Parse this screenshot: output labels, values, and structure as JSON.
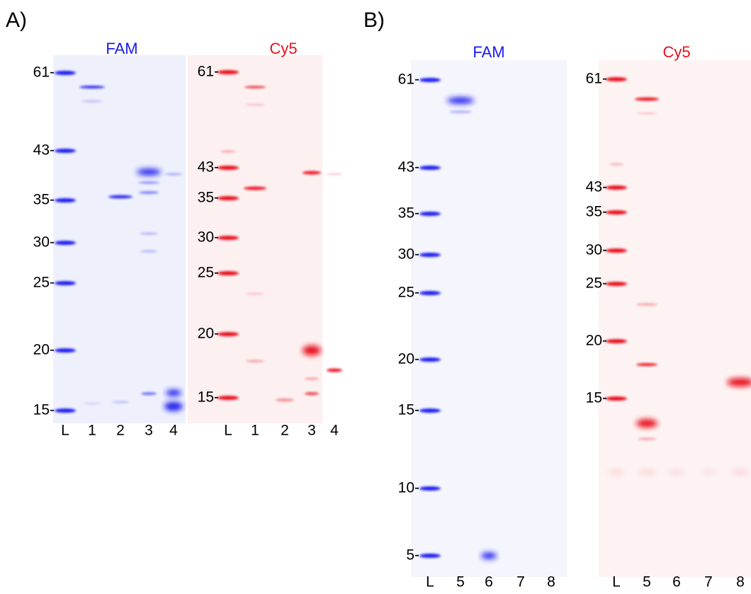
{
  "panels": [
    {
      "label": "A)",
      "gels": [
        {
          "title": "FAM",
          "markers": [
            "61-",
            "43-",
            "35-",
            "30-",
            "25-",
            "20-",
            "15-"
          ],
          "lanes": [
            "L",
            "1",
            "2",
            "3",
            "4"
          ]
        },
        {
          "title": "Cy5",
          "markers": [
            "61-",
            "43-",
            "35-",
            "30-",
            "25-",
            "20-",
            "15-"
          ],
          "lanes": [
            "L",
            "1",
            "2",
            "3",
            "4"
          ]
        }
      ]
    },
    {
      "label": "B)",
      "gels": [
        {
          "title": "FAM",
          "markers": [
            "61-",
            "43-",
            "35-",
            "30-",
            "25-",
            "20-",
            "15-",
            "10-",
            "5-"
          ],
          "lanes": [
            "L",
            "5",
            "6",
            "7",
            "8"
          ]
        },
        {
          "title": "Cy5",
          "markers": [
            "61-",
            "43-",
            "35-",
            "30-",
            "25-",
            "20-",
            "15-"
          ],
          "lanes": [
            "L",
            "5",
            "6",
            "7",
            "8"
          ]
        }
      ]
    }
  ]
}
